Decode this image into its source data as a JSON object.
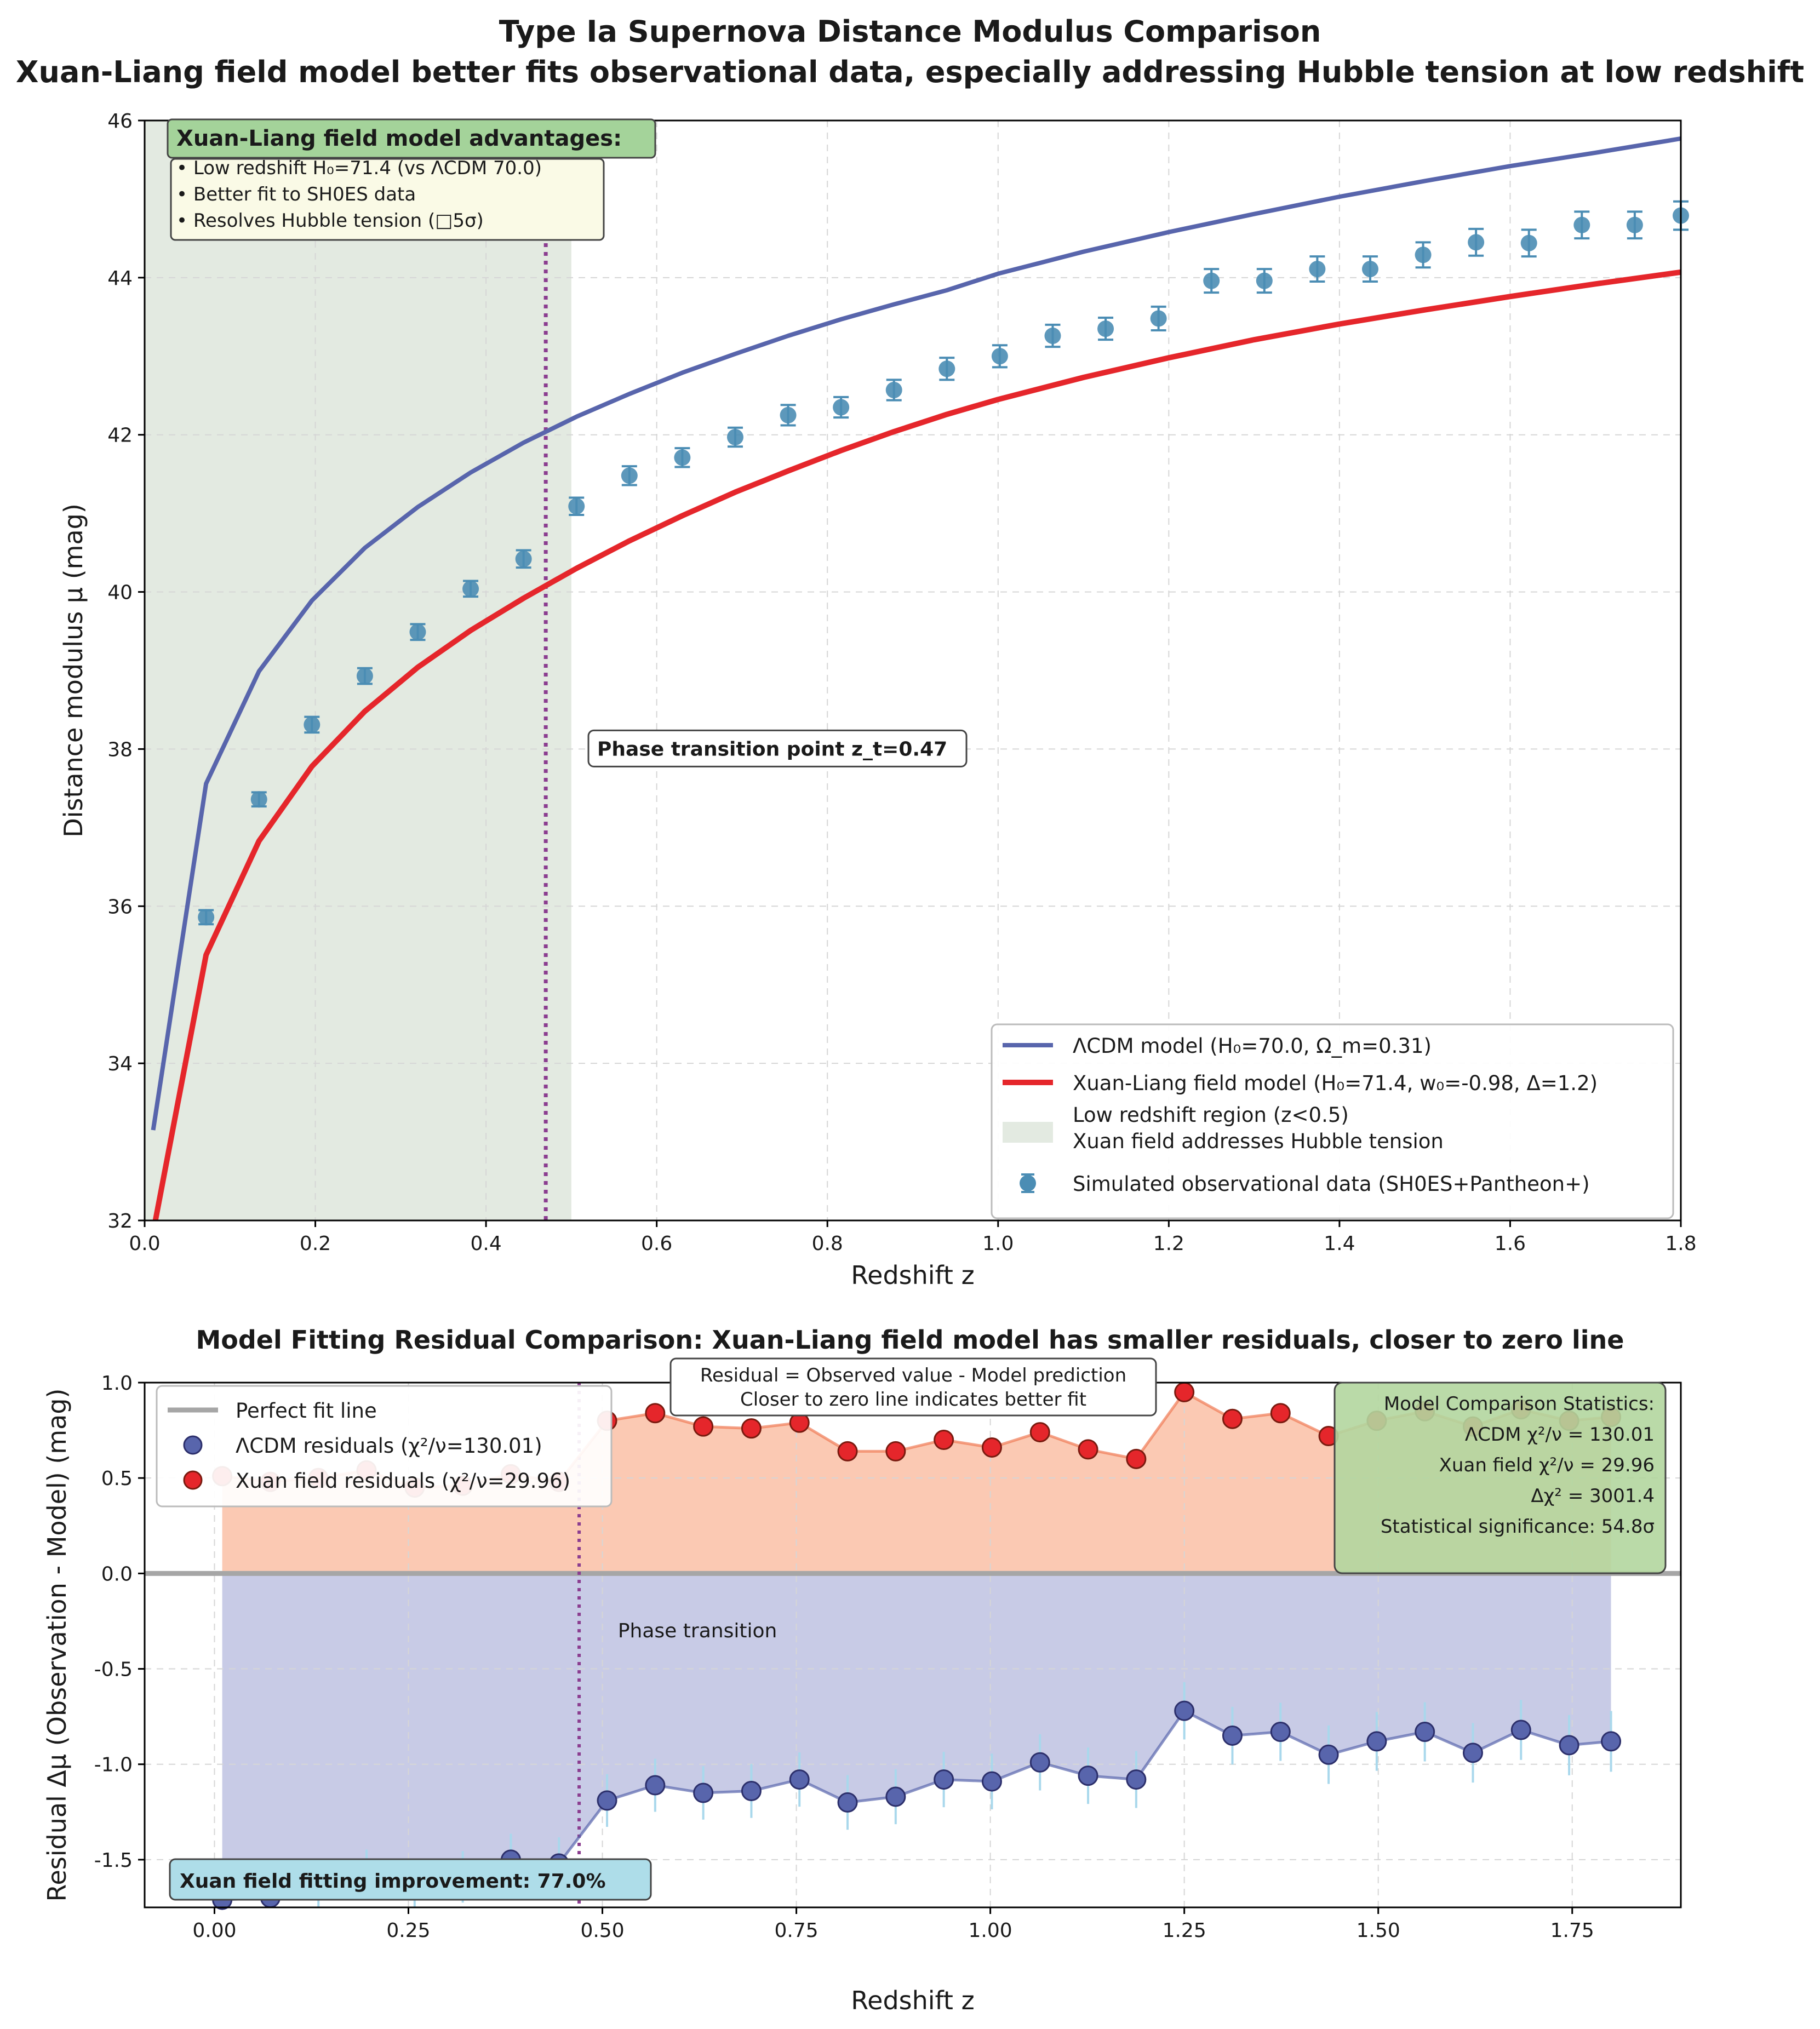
{
  "figure_title_line1": "Type Ia Supernova Distance Modulus Comparison",
  "figure_title_line2": "Xuan-Liang field model better fits observational data, especially addressing Hubble tension at low redshift",
  "colors": {
    "lcdm": "#5865ac",
    "xuan": "#e5262b",
    "data": "#4b8db4",
    "low_z_region": "#e3eae1",
    "phase": "#8b3d90",
    "xuan_fill": "#fbc9b3",
    "lcdm_fill": "#c8cbe6",
    "advantage_header": "#a4d39a",
    "advantage_body": "#fafae6",
    "stats_box": "#b3d69f",
    "improvement_box": "#aedde9"
  },
  "chart_data": [
    {
      "type": "line",
      "name": "distance-modulus",
      "xlabel": "Redshift z",
      "ylabel": "Distance modulus μ (mag)",
      "xlim": [
        0,
        1.8
      ],
      "ylim": [
        32,
        46
      ],
      "xticks": [
        0.0,
        0.2,
        0.4,
        0.6,
        0.8,
        1.0,
        1.2,
        1.4,
        1.6,
        1.8
      ],
      "xtick_labels": [
        "0.0",
        "0.2",
        "0.4",
        "0.6",
        "0.8",
        "1.0",
        "1.2",
        "1.4",
        "1.6",
        "1.8"
      ],
      "yticks": [
        32,
        34,
        36,
        38,
        40,
        42,
        44,
        46
      ],
      "ytick_labels": [
        "32",
        "34",
        "36",
        "38",
        "40",
        "42",
        "44",
        "46"
      ],
      "grid": true,
      "legend_position": "lower-right",
      "low_z_region": {
        "from": 0,
        "to": 0.5,
        "label_line1": "Low redshift region (z<0.5)",
        "label_line2": "Xuan field addresses Hubble tension"
      },
      "phase_transition": {
        "z": 0.47,
        "label": "Phase transition point z_t=0.47",
        "label_z": 0.52,
        "label_mu": 38.0
      },
      "series": [
        {
          "name": "ΛCDM model (H₀=70.0, Ω_m=0.31)",
          "x": [
            0.01,
            0.072,
            0.134,
            0.196,
            0.258,
            0.32,
            0.382,
            0.444,
            0.506,
            0.568,
            0.63,
            0.692,
            0.754,
            0.816,
            0.878,
            0.94,
            1.0,
            1.1,
            1.2,
            1.3,
            1.4,
            1.5,
            1.6,
            1.7,
            1.8
          ],
          "y": [
            33.15,
            37.56,
            38.99,
            39.89,
            40.56,
            41.08,
            41.52,
            41.9,
            42.23,
            42.52,
            42.79,
            43.03,
            43.26,
            43.47,
            43.66,
            43.84,
            44.05,
            44.33,
            44.58,
            44.81,
            45.03,
            45.23,
            45.42,
            45.59,
            45.77
          ]
        },
        {
          "name": "Xuan-Liang field model (H₀=71.4, w₀=-0.98, Δ=1.2)",
          "x": [
            0.01,
            0.072,
            0.134,
            0.196,
            0.258,
            0.32,
            0.382,
            0.444,
            0.506,
            0.568,
            0.63,
            0.692,
            0.754,
            0.816,
            0.878,
            0.94,
            1.0,
            1.1,
            1.2,
            1.3,
            1.4,
            1.5,
            1.6,
            1.7,
            1.8
          ],
          "y": [
            31.85,
            35.38,
            36.83,
            37.78,
            38.48,
            39.04,
            39.51,
            39.92,
            40.3,
            40.65,
            40.97,
            41.27,
            41.54,
            41.8,
            42.04,
            42.26,
            42.45,
            42.73,
            42.98,
            43.21,
            43.41,
            43.59,
            43.76,
            43.92,
            44.07
          ]
        },
        {
          "name": "Simulated observational data (SH0ES+Pantheon+)",
          "kind": "errorbar",
          "x": [
            0.072,
            0.134,
            0.196,
            0.258,
            0.32,
            0.382,
            0.444,
            0.506,
            0.568,
            0.63,
            0.692,
            0.754,
            0.816,
            0.878,
            0.94,
            1.002,
            1.064,
            1.126,
            1.188,
            1.25,
            1.312,
            1.374,
            1.436,
            1.498,
            1.56,
            1.622,
            1.684,
            1.746,
            1.808
          ],
          "y": [
            35.86,
            37.36,
            38.31,
            38.93,
            39.49,
            40.04,
            40.42,
            41.09,
            41.48,
            41.71,
            41.97,
            42.25,
            42.35,
            42.57,
            42.84,
            43.0,
            43.26,
            43.35,
            43.48,
            43.96,
            43.96,
            44.11,
            44.11,
            44.29,
            44.45,
            44.44,
            44.67,
            44.67,
            44.79
          ],
          "err": [
            0.09,
            0.09,
            0.1,
            0.1,
            0.1,
            0.1,
            0.11,
            0.11,
            0.12,
            0.12,
            0.12,
            0.13,
            0.13,
            0.13,
            0.14,
            0.14,
            0.14,
            0.14,
            0.15,
            0.15,
            0.15,
            0.16,
            0.16,
            0.16,
            0.17,
            0.17,
            0.17,
            0.17,
            0.18
          ]
        }
      ]
    },
    {
      "type": "scatter",
      "name": "residuals",
      "title": "Model Fitting Residual Comparison: Xuan-Liang field model has smaller residuals, closer to zero line",
      "xlabel": "Redshift z",
      "ylabel": "Residual Δμ (Observation - Model) (mag)",
      "xlim": [
        -0.09,
        1.89
      ],
      "ylim": [
        -1.75,
        1.0
      ],
      "xticks": [
        0.0,
        0.25,
        0.5,
        0.75,
        1.0,
        1.25,
        1.5,
        1.75
      ],
      "xtick_labels": [
        "0.00",
        "0.25",
        "0.50",
        "0.75",
        "1.00",
        "1.25",
        "1.50",
        "1.75"
      ],
      "yticks": [
        -1.5,
        -1.0,
        -0.5,
        0.0,
        0.5,
        1.0
      ],
      "ytick_labels": [
        "-1.5",
        "-1.0",
        "-0.5",
        "0.0",
        "0.5",
        "1.0"
      ],
      "grid": true,
      "legend_position": "upper-left",
      "zero_line_label": "Perfect fit line",
      "phase_transition": {
        "z": 0.47,
        "label": "Phase transition",
        "label_z": 0.52,
        "label_mu": -0.3
      },
      "x": [
        0.01,
        0.072,
        0.134,
        0.196,
        0.258,
        0.32,
        0.382,
        0.444,
        0.506,
        0.568,
        0.63,
        0.692,
        0.754,
        0.816,
        0.878,
        0.94,
        1.002,
        1.064,
        1.126,
        1.188,
        1.25,
        1.312,
        1.374,
        1.436,
        1.498,
        1.56,
        1.622,
        1.684,
        1.746,
        1.8
      ],
      "series": [
        {
          "name": "ΛCDM residuals (χ²/ν=130.01)",
          "y": [
            -1.71,
            -1.7,
            -1.63,
            -1.58,
            -1.63,
            -1.59,
            -1.5,
            -1.52,
            -1.19,
            -1.11,
            -1.15,
            -1.14,
            -1.08,
            -1.2,
            -1.17,
            -1.08,
            -1.09,
            -0.99,
            -1.06,
            -1.08,
            -0.72,
            -0.85,
            -0.83,
            -0.95,
            -0.88,
            -0.83,
            -0.94,
            -0.82,
            -0.9,
            -0.88
          ]
        },
        {
          "name": "Xuan field residuals (χ²/ν=29.96)",
          "y": [
            0.51,
            0.48,
            0.5,
            0.54,
            0.45,
            0.46,
            0.52,
            0.48,
            0.8,
            0.84,
            0.77,
            0.76,
            0.79,
            0.64,
            0.64,
            0.7,
            0.66,
            0.74,
            0.65,
            0.6,
            0.95,
            0.81,
            0.84,
            0.72,
            0.8,
            0.85,
            0.77,
            0.86,
            0.8,
            0.82
          ]
        }
      ]
    }
  ],
  "advantages_box": {
    "header": "Xuan-Liang field model advantages:",
    "lines": [
      "• Low redshift H₀=71.4 (vs ΛCDM 70.0)",
      "• Better fit to SH0ES data",
      "• Resolves Hubble tension (□5σ)"
    ]
  },
  "residual_note": {
    "line1": "Residual = Observed value - Model prediction",
    "line2": "Closer to zero line indicates better fit"
  },
  "stats_box": {
    "lines": [
      "Model Comparison Statistics:",
      "ΛCDM χ²/ν = 130.01",
      "Xuan field χ²/ν = 29.96",
      "Δχ² = 3001.4",
      "Statistical significance: 54.8σ"
    ]
  },
  "improvement_label": "Xuan field fitting improvement: 77.0%"
}
